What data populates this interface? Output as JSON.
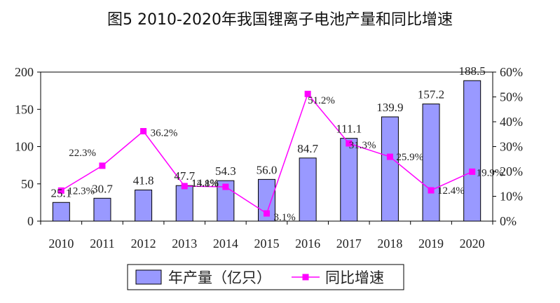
{
  "chart_data": {
    "type": "bar+line",
    "title": "图5 2010-2020年我国锂离子电池产量和同比增速",
    "categories": [
      "2010",
      "2011",
      "2012",
      "2013",
      "2014",
      "2015",
      "2016",
      "2017",
      "2018",
      "2019",
      "2020"
    ],
    "series": [
      {
        "name": "年产量（亿只）",
        "type": "bar",
        "axis": "left",
        "values": [
          25.1,
          30.7,
          41.8,
          47.7,
          54.3,
          56.0,
          84.7,
          111.1,
          139.9,
          157.2,
          188.5
        ],
        "labels": [
          "25.1",
          "30.7",
          "41.8",
          "47.7",
          "54.3",
          "56.0",
          "84.7",
          "111.1",
          "139.9",
          "157.2",
          "188.5"
        ],
        "color": "#9999ff"
      },
      {
        "name": "同比增速",
        "type": "line",
        "axis": "right",
        "values": [
          12.3,
          22.3,
          36.2,
          14.1,
          13.8,
          3.1,
          51.2,
          31.3,
          25.9,
          12.4,
          19.9
        ],
        "labels": [
          "12.3%",
          "22.3%",
          "36.2%",
          "14.1%",
          "13.8%",
          "3.1%",
          "51.2%",
          "31.3%",
          "25.9%",
          "12.4%",
          "19.9%"
        ],
        "color": "#ff00ff"
      }
    ],
    "ylim": [
      0,
      200
    ],
    "yticks": [
      "0",
      "50",
      "100",
      "150",
      "200"
    ],
    "y2lim": [
      0,
      60
    ],
    "y2ticks": [
      "0%",
      "10%",
      "20%",
      "30%",
      "40%",
      "50%",
      "60%"
    ],
    "grid": false,
    "legend": "bottom"
  }
}
